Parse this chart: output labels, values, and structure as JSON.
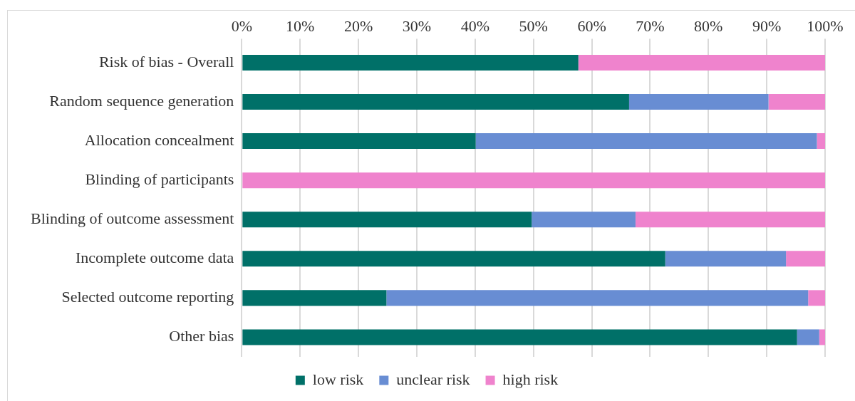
{
  "chart_data": {
    "type": "bar",
    "orientation": "horizontal",
    "stacked": true,
    "categories": [
      "Risk of bias - Overall",
      "Random sequence generation",
      "Allocation concealment",
      "Blinding of participants",
      "Blinding of outcome assessment",
      "Incomplete outcome data",
      "Selected outcome reporting",
      "Other bias"
    ],
    "series": [
      {
        "name": "low risk",
        "color": "#007068",
        "values": [
          57.7,
          66.4,
          40.1,
          0,
          49.7,
          72.6,
          24.8,
          95.2
        ]
      },
      {
        "name": "unclear risk",
        "color": "#688dd3",
        "values": [
          0,
          23.9,
          58.5,
          0,
          17.8,
          20.7,
          72.3,
          3.8
        ]
      },
      {
        "name": "high risk",
        "color": "#ef83cd",
        "values": [
          42.3,
          9.7,
          1.4,
          100,
          32.5,
          6.7,
          2.9,
          1.0
        ]
      }
    ],
    "xlim": [
      0,
      100
    ],
    "xticks": [
      {
        "value": 0,
        "label": "0%"
      },
      {
        "value": 10,
        "label": "10%"
      },
      {
        "value": 20,
        "label": "20%"
      },
      {
        "value": 30,
        "label": "30%"
      },
      {
        "value": 40,
        "label": "40%"
      },
      {
        "value": 50,
        "label": "50%"
      },
      {
        "value": 60,
        "label": "60%"
      },
      {
        "value": 70,
        "label": "70%"
      },
      {
        "value": 80,
        "label": "80%"
      },
      {
        "value": 90,
        "label": "90%"
      },
      {
        "value": 100,
        "label": "100%"
      }
    ],
    "grid": "x",
    "legend": "bottom"
  }
}
